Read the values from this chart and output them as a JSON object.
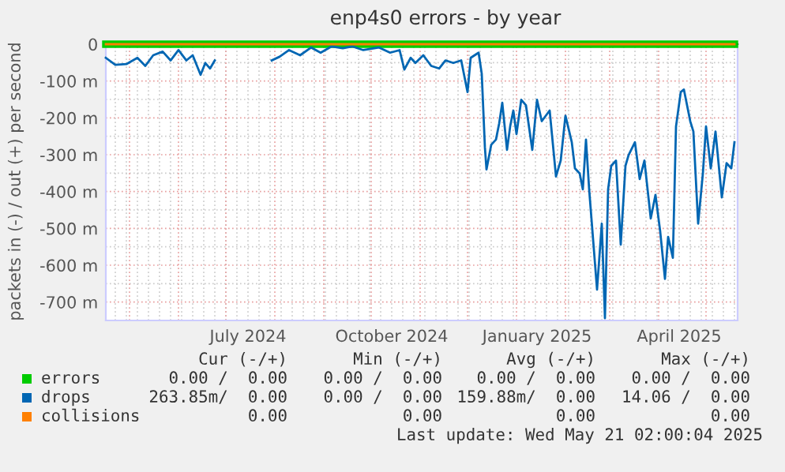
{
  "chart_data": {
    "type": "line",
    "title": "enp4s0 errors - by year",
    "ylabel": "packets in (-) / out (+) per second",
    "x": [
      "2024-04-16",
      "2024-04-22",
      "2024-04-29",
      "2024-05-06",
      "2024-05-11",
      "2024-05-16",
      "2024-05-22",
      "2024-05-27",
      "2024-06-01",
      "2024-06-06",
      "2024-06-10",
      "2024-06-15",
      "2024-06-18",
      "2024-06-21",
      "2024-06-24",
      "2024-07-10",
      "2024-07-30",
      "2024-08-04",
      "2024-08-10",
      "2024-08-17",
      "2024-08-24",
      "2024-08-30",
      "2024-09-06",
      "2024-09-13",
      "2024-09-19",
      "2024-09-26",
      "2024-10-06",
      "2024-10-13",
      "2024-10-19",
      "2024-10-22",
      "2024-10-26",
      "2024-10-29",
      "2024-11-03",
      "2024-11-08",
      "2024-11-13",
      "2024-11-17",
      "2024-11-22",
      "2024-11-27",
      "2024-12-01",
      "2024-12-03",
      "2024-12-08",
      "2024-12-10",
      "2024-12-12",
      "2024-12-13",
      "2024-12-16",
      "2024-12-19",
      "2024-12-21",
      "2024-12-23",
      "2024-12-26",
      "2024-12-28",
      "2024-12-30",
      "2025-01-01",
      "2025-01-04",
      "2025-01-07",
      "2025-01-11",
      "2025-01-14",
      "2025-01-17",
      "2025-01-22",
      "2025-01-26",
      "2025-01-29",
      "2025-02-01",
      "2025-02-05",
      "2025-02-07",
      "2025-02-10",
      "2025-02-12",
      "2025-02-14",
      "2025-02-16",
      "2025-02-21",
      "2025-02-24",
      "2025-02-26",
      "2025-02-28",
      "2025-03-02",
      "2025-03-05",
      "2025-03-08",
      "2025-03-11",
      "2025-03-13",
      "2025-03-17",
      "2025-03-20",
      "2025-03-23",
      "2025-03-27",
      "2025-03-30",
      "2025-04-02",
      "2025-04-05",
      "2025-04-07",
      "2025-04-10",
      "2025-04-12",
      "2025-04-15",
      "2025-04-17",
      "2025-04-21",
      "2025-04-23",
      "2025-04-26",
      "2025-04-29",
      "2025-05-01",
      "2025-05-04",
      "2025-05-07",
      "2025-05-11",
      "2025-05-14",
      "2025-05-17",
      "2025-05-19"
    ],
    "series": [
      {
        "name": "errors",
        "color": "#00cc00",
        "x": [
          "2024-04-16",
          "2025-05-19"
        ],
        "values": [
          0,
          0
        ]
      },
      {
        "name": "drops",
        "color": "#0066b3",
        "values": [
          -37,
          -56,
          -54,
          -37,
          -59,
          -30,
          -20,
          -44,
          -16,
          -44,
          -30,
          -83,
          -51,
          -66,
          -44,
          null,
          -44,
          -34,
          -16,
          -30,
          -9,
          -23,
          -6,
          -11,
          -6,
          -16,
          -9,
          -23,
          -16,
          -69,
          -37,
          -51,
          -30,
          -59,
          -66,
          -44,
          -51,
          -44,
          -130,
          -37,
          -23,
          -80,
          -280,
          -340,
          -273,
          -259,
          -216,
          -159,
          -287,
          -223,
          -180,
          -244,
          -151,
          -166,
          -287,
          -151,
          -209,
          -180,
          -359,
          -316,
          -194,
          -266,
          -337,
          -351,
          -394,
          -259,
          -394,
          -666,
          -487,
          -744,
          -394,
          -330,
          -316,
          -544,
          -330,
          -301,
          -266,
          -366,
          -316,
          -473,
          -409,
          -509,
          -637,
          -523,
          -580,
          -223,
          -130,
          -123,
          -209,
          -237,
          -487,
          -351,
          -223,
          -337,
          -237,
          -416,
          -323,
          -337,
          -266
        ]
      },
      {
        "name": "collisions",
        "color": "#ff8000",
        "x": [
          "2024-04-16",
          "2025-05-19"
        ],
        "values": [
          0,
          0
        ]
      }
    ],
    "xlim": [
      "2024-04-16",
      "2025-05-21"
    ],
    "xticks": [
      {
        "value": "2024-07-15",
        "label": "July 2024"
      },
      {
        "value": "2024-10-14",
        "label": "October 2024"
      },
      {
        "value": "2025-01-14",
        "label": "January 2025"
      },
      {
        "value": "2025-04-14",
        "label": "April 2025"
      }
    ],
    "ylim": [
      -750,
      0
    ],
    "yticks": [
      {
        "value": -700,
        "label": "-700 m"
      },
      {
        "value": -600,
        "label": "-600 m"
      },
      {
        "value": -500,
        "label": "-500 m"
      },
      {
        "value": -400,
        "label": "-400 m"
      },
      {
        "value": -300,
        "label": "-300 m"
      },
      {
        "value": -200,
        "label": "-200 m"
      },
      {
        "value": -100,
        "label": "-100 m"
      },
      0
    ],
    "grid": true,
    "legend": "bottom",
    "annotations": [
      "Cur (-/+)",
      "Min (-/+)",
      "Avg (-/+)",
      "Max (-/+)",
      "0.00 /  0.00",
      "0.00 /  0.00",
      "0.00 /  0.00",
      "0.00 /  0.00",
      "263.85m/  0.00",
      "0.00 /  0.00",
      "159.88m/  0.00",
      "14.06 /  0.00",
      "0.00",
      "0.00",
      "0.00",
      "0.00",
      "Last update: Wed May 21 02:00:04 2025"
    ]
  }
}
